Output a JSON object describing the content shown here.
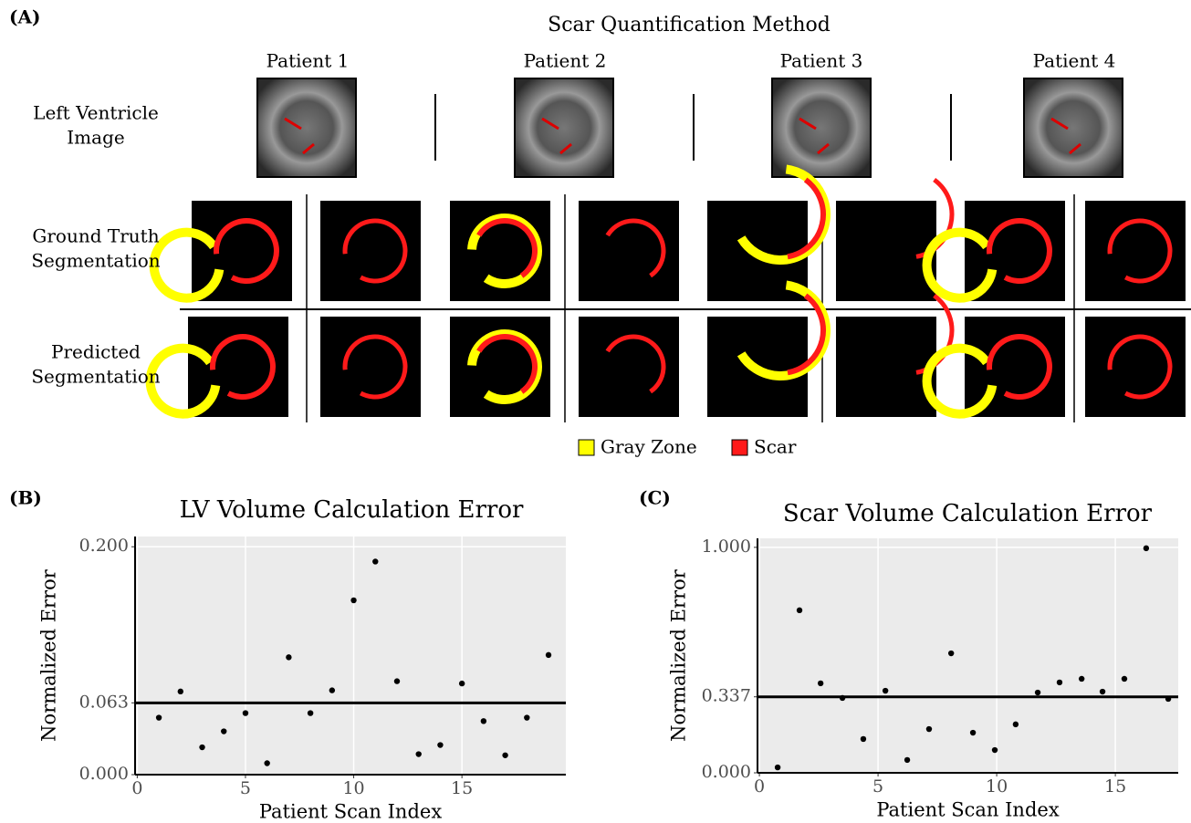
{
  "panel_a": {
    "label": "(A)",
    "title": "Scar Quantification Method",
    "patients": [
      "Patient 1",
      "Patient 2",
      "Patient 3",
      "Patient 4"
    ],
    "rows": [
      [
        "Left Ventricle",
        "Image"
      ],
      [
        "Ground Truth",
        "Segmentation"
      ],
      [
        "Predicted",
        "Segmentation"
      ]
    ],
    "legend": [
      {
        "name": "Gray Zone",
        "color": "#ffff00"
      },
      {
        "name": "Scar",
        "color": "#ff1a1a"
      }
    ]
  },
  "chart_data": [
    {
      "type": "scatter",
      "panel_label": "(B)",
      "title": "LV Volume Calculation Error",
      "x_label": "Patient Scan Index",
      "y_label": "Normalized Error",
      "x": [
        1,
        2,
        3,
        4,
        5,
        6,
        7,
        8,
        9,
        10,
        11,
        12,
        13,
        14,
        15,
        16,
        17,
        18,
        19
      ],
      "values": [
        0.05,
        0.073,
        0.024,
        0.038,
        0.054,
        0.01,
        0.103,
        0.054,
        0.074,
        0.153,
        0.187,
        0.082,
        0.018,
        0.026,
        0.08,
        0.047,
        0.017,
        0.05,
        0.105
      ],
      "hline": 0.063,
      "color": "#000000",
      "xlim": [
        -0.1,
        19.8
      ],
      "ylim": [
        0,
        0.209
      ],
      "xticks": [
        0,
        5,
        10,
        15
      ],
      "yticks": [
        {
          "value": 0,
          "label": "0.000"
        },
        {
          "value": 0.063,
          "label": "0.063"
        },
        {
          "value": 0.2,
          "label": "0.200"
        }
      ],
      "grid": true
    },
    {
      "type": "scatter",
      "panel_label": "(C)",
      "title": "Scar Volume Calculation Error",
      "x_label": "Patient Scan Index",
      "y_label": "Normalized Error",
      "x": [
        0.77,
        1.69,
        2.58,
        3.5,
        4.38,
        5.31,
        6.23,
        7.15,
        8.08,
        9.0,
        9.92,
        10.8,
        11.73,
        12.65,
        13.58,
        14.46,
        15.38,
        16.3,
        17.23
      ],
      "values": [
        0.024,
        0.721,
        0.397,
        0.332,
        0.15,
        0.364,
        0.057,
        0.194,
        0.53,
        0.178,
        0.101,
        0.215,
        0.356,
        0.401,
        0.417,
        0.36,
        0.417,
        0.996,
        0.328
      ],
      "hline": 0.337,
      "color": "#000000",
      "xlim": [
        -0.08,
        17.65
      ],
      "ylim": [
        0,
        1.04
      ],
      "xticks": [
        0,
        5,
        10,
        15
      ],
      "yticks": [
        {
          "value": 0,
          "label": "0.000"
        },
        {
          "value": 0.337,
          "label": "0.337"
        },
        {
          "value": 1,
          "label": "1.000"
        }
      ],
      "grid": true
    }
  ]
}
